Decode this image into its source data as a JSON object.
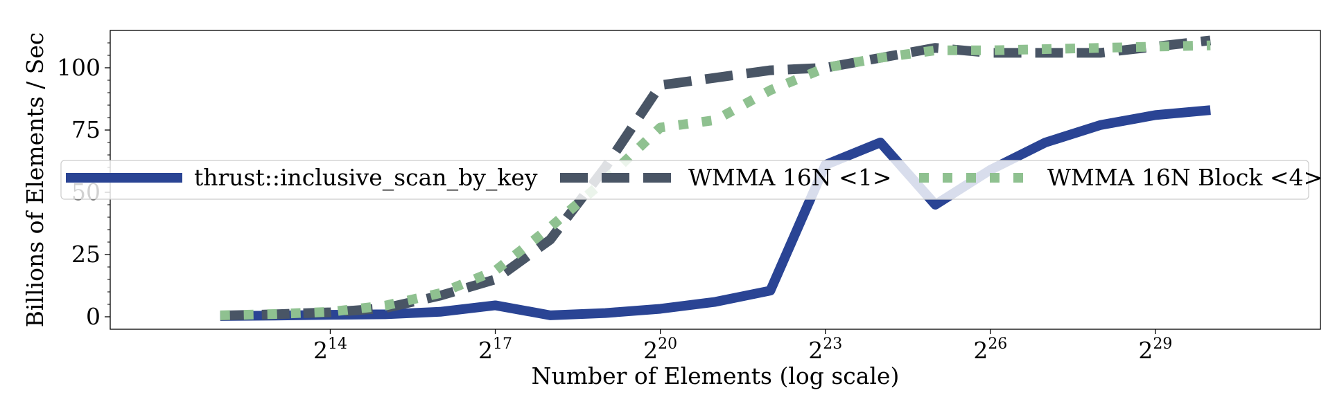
{
  "chart_data": {
    "type": "line",
    "title": "",
    "xlabel": "Number of Elements (log scale)",
    "ylabel": "Billions of Elements / Sec",
    "x_scale": "log2",
    "x": [
      4096,
      8192,
      16384,
      32768,
      65536,
      131072,
      262144,
      524288,
      1048576,
      2097152,
      4194304,
      8388608,
      16777216,
      33554432,
      67108864,
      134217728,
      268435456,
      536870912,
      1073741824
    ],
    "xlim": [
      1024,
      4294967296
    ],
    "ylim": [
      -5,
      115
    ],
    "x_ticks": [
      {
        "value": 16384,
        "base": "2",
        "exp": "14"
      },
      {
        "value": 131072,
        "base": "2",
        "exp": "17"
      },
      {
        "value": 1048576,
        "base": "2",
        "exp": "20"
      },
      {
        "value": 8388608,
        "base": "2",
        "exp": "23"
      },
      {
        "value": 67108864,
        "base": "2",
        "exp": "26"
      },
      {
        "value": 536870912,
        "base": "2",
        "exp": "29"
      }
    ],
    "y_ticks": [
      {
        "value": 0,
        "label": "0"
      },
      {
        "value": 25,
        "label": "25"
      },
      {
        "value": 50,
        "label": "50"
      },
      {
        "value": 75,
        "label": "75"
      },
      {
        "value": 100,
        "label": "100"
      }
    ],
    "y_minor_step": 5,
    "grid": false,
    "legend_position": "center",
    "legend_columns": 3,
    "series": [
      {
        "name": "thrust::inclusive_scan_by_key",
        "color": "#2a4494",
        "style": "solid",
        "values": [
          0.3,
          0.5,
          0.8,
          1.0,
          2.0,
          4.6,
          0.6,
          1.5,
          3.2,
          6.0,
          10.5,
          61.0,
          70.0,
          45.0,
          59.0,
          70.0,
          77.0,
          81.0,
          83.0
        ]
      },
      {
        "name": "WMMA 16N <1>",
        "color": "#495565",
        "style": "dashed",
        "values": [
          0.5,
          1.0,
          1.8,
          3.5,
          8.5,
          15.0,
          31.0,
          60.0,
          93.0,
          96.0,
          99.0,
          100.0,
          104.0,
          108.0,
          106.0,
          106.0,
          106.0,
          108.5,
          111.0
        ]
      },
      {
        "name": "WMMA 16N Block <4>",
        "color": "#8fc190",
        "style": "dotted",
        "values": [
          0.6,
          1.1,
          2.0,
          4.5,
          9.5,
          18.5,
          36.0,
          55.0,
          76.0,
          79.0,
          91.0,
          100.0,
          104.0,
          107.0,
          107.0,
          107.5,
          108.0,
          108.5,
          109.0
        ]
      }
    ]
  }
}
